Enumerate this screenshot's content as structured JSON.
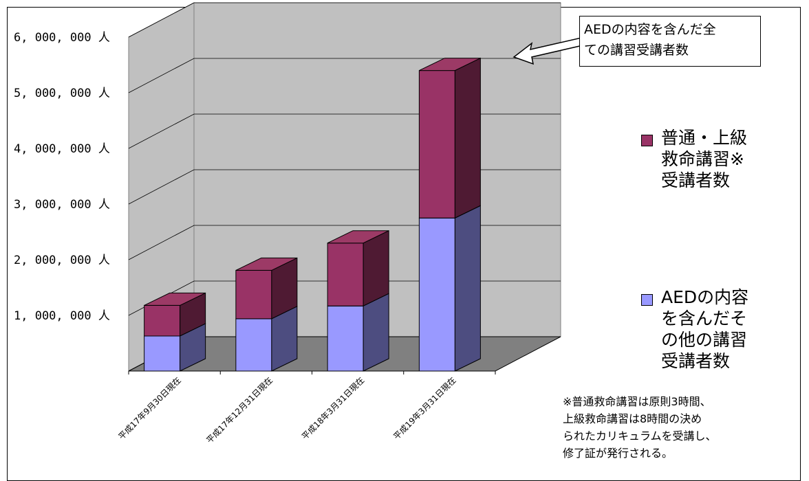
{
  "colors": {
    "upper_series": "#993366",
    "upper_series_top": "#9c3a66",
    "upper_series_side": "#4f1a33",
    "lower_series": "#9999ff",
    "lower_series_top": "#8080e6",
    "lower_series_side": "#4d4d80",
    "wall": "#c0c0c0",
    "floor": "#808080"
  },
  "chart_data": {
    "type": "bar",
    "stacked": true,
    "three_d": true,
    "categories": [
      "平成17年9月30日現在",
      "平成17年12月31日現在",
      "平成18年3月31日現在",
      "平成19年3月31日現在"
    ],
    "series": [
      {
        "name": "AEDの内容を含んだその他の講習受講者数",
        "values": [
          630000,
          940000,
          1170000,
          2750000
        ]
      },
      {
        "name": "普通・上級救命講習※受講者数",
        "values": [
          550000,
          870000,
          1130000,
          2650000
        ]
      }
    ],
    "yticks": [
      "1, 000, 000 人",
      "2, 000, 000 人",
      "3, 000, 000 人",
      "4, 000, 000 人",
      "5, 000, 000 人",
      "6, 000, 000 人"
    ],
    "ylim": [
      0,
      6000000
    ],
    "grid": true,
    "legend_position": "right"
  },
  "legend": {
    "upper_label": "普通・上級\n救命講習※\n受講者数",
    "lower_label": "AEDの内容\nを含んだそ\nの他の講習\n受講者数"
  },
  "callout": {
    "text": "AEDの内容を含んだ全\nての講習受講者数"
  },
  "footnote": {
    "text": "※普通救命講習は原則3時間、\n上級救命講習は8時間の決め\nられたカリキュラムを受講し、\n修了証が発行される。"
  }
}
